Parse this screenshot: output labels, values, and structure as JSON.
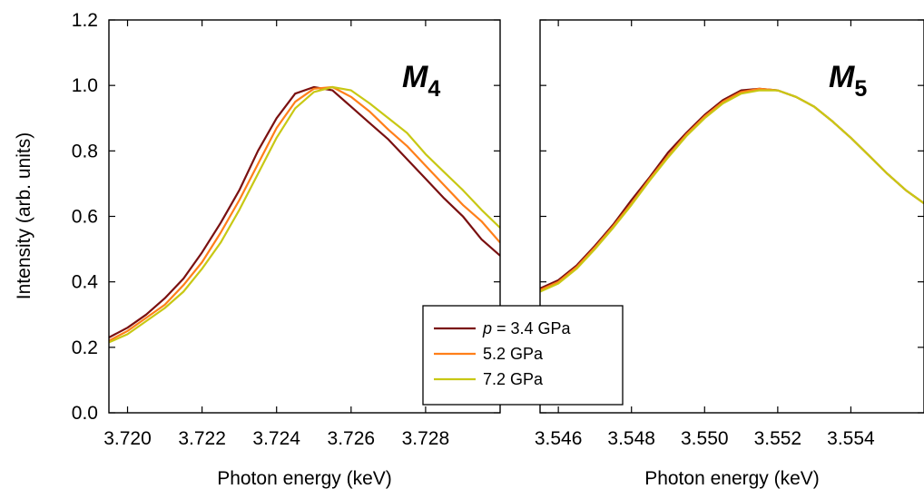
{
  "ylabel": "Intensity (arb. units)",
  "colors": {
    "p34": "#7a1010",
    "p52": "#ff7f1a",
    "p72": "#c8c814"
  },
  "legend": {
    "entries": [
      {
        "italic": "p",
        "text": " = 3.4 GPa"
      },
      {
        "italic": "",
        "text": "5.2 GPa"
      },
      {
        "italic": "",
        "text": "7.2 GPa"
      }
    ]
  },
  "chart_data": [
    {
      "type": "line",
      "panel_label": {
        "main": "M",
        "sub": "4"
      },
      "xlabel": "Photon energy (keV)",
      "ylabel": "Intensity (arb. units)",
      "xlim": [
        3.7195,
        3.73
      ],
      "ylim": [
        0.0,
        1.2
      ],
      "xticks": [
        3.72,
        3.722,
        3.724,
        3.726,
        3.728
      ],
      "xtick_labels": [
        "3.720",
        "3.722",
        "3.724",
        "3.726",
        "3.728"
      ],
      "yticks": [
        0.0,
        0.2,
        0.4,
        0.6,
        0.8,
        1.0,
        1.2
      ],
      "ytick_labels": [
        "0.0",
        "0.2",
        "0.4",
        "0.6",
        "0.8",
        "1.0",
        "1.2"
      ],
      "series": [
        {
          "name": "p = 3.4 GPa",
          "color": "#7a1010",
          "x": [
            3.7195,
            3.72,
            3.7205,
            3.721,
            3.7215,
            3.722,
            3.7225,
            3.723,
            3.7235,
            3.724,
            3.7245,
            3.725,
            3.7255,
            3.726,
            3.7265,
            3.727,
            3.7275,
            3.728,
            3.7285,
            3.729,
            3.7295,
            3.73
          ],
          "y": [
            0.23,
            0.26,
            0.3,
            0.35,
            0.41,
            0.49,
            0.58,
            0.68,
            0.8,
            0.9,
            0.975,
            0.995,
            0.985,
            0.935,
            0.885,
            0.835,
            0.775,
            0.715,
            0.655,
            0.6,
            0.53,
            0.48
          ]
        },
        {
          "name": "5.2 GPa",
          "color": "#ff7f1a",
          "x": [
            3.7195,
            3.72,
            3.7205,
            3.721,
            3.7215,
            3.722,
            3.7225,
            3.723,
            3.7235,
            3.724,
            3.7245,
            3.725,
            3.7255,
            3.726,
            3.7265,
            3.727,
            3.7275,
            3.728,
            3.7285,
            3.729,
            3.7295,
            3.73
          ],
          "y": [
            0.22,
            0.25,
            0.29,
            0.33,
            0.39,
            0.46,
            0.55,
            0.65,
            0.76,
            0.87,
            0.95,
            0.99,
            0.995,
            0.965,
            0.92,
            0.865,
            0.815,
            0.755,
            0.695,
            0.635,
            0.585,
            0.52
          ]
        },
        {
          "name": "7.2 GPa",
          "color": "#c8c814",
          "x": [
            3.7195,
            3.72,
            3.7205,
            3.721,
            3.7215,
            3.722,
            3.7225,
            3.723,
            3.7235,
            3.724,
            3.7245,
            3.725,
            3.7255,
            3.726,
            3.7265,
            3.727,
            3.7275,
            3.728,
            3.7285,
            3.729,
            3.7295,
            3.73
          ],
          "y": [
            0.215,
            0.24,
            0.28,
            0.32,
            0.37,
            0.44,
            0.52,
            0.62,
            0.73,
            0.84,
            0.93,
            0.98,
            0.995,
            0.985,
            0.945,
            0.9,
            0.855,
            0.79,
            0.735,
            0.68,
            0.62,
            0.565
          ]
        }
      ]
    },
    {
      "type": "line",
      "panel_label": {
        "main": "M",
        "sub": "5"
      },
      "xlabel": "Photon energy (keV)",
      "ylabel": "",
      "xlim": [
        3.5455,
        3.556
      ],
      "ylim": [
        0.0,
        1.2
      ],
      "xticks": [
        3.546,
        3.548,
        3.55,
        3.552,
        3.554
      ],
      "xtick_labels": [
        "3.546",
        "3.548",
        "3.550",
        "3.552",
        "3.554"
      ],
      "yticks": [
        0.0,
        0.2,
        0.4,
        0.6,
        0.8,
        1.0,
        1.2
      ],
      "ytick_labels": [],
      "series": [
        {
          "name": "p = 3.4 GPa",
          "color": "#7a1010",
          "x": [
            3.5455,
            3.546,
            3.5465,
            3.547,
            3.5475,
            3.548,
            3.5485,
            3.549,
            3.5495,
            3.55,
            3.5505,
            3.551,
            3.5515,
            3.552,
            3.5525,
            3.553,
            3.5535,
            3.554,
            3.5545,
            3.555,
            3.5555,
            3.556
          ],
          "y": [
            0.38,
            0.405,
            0.45,
            0.51,
            0.575,
            0.65,
            0.72,
            0.795,
            0.855,
            0.91,
            0.955,
            0.985,
            0.99,
            0.985,
            0.965,
            0.935,
            0.89,
            0.84,
            0.785,
            0.73,
            0.68,
            0.64
          ]
        },
        {
          "name": "5.2 GPa",
          "color": "#ff7f1a",
          "x": [
            3.5455,
            3.546,
            3.5465,
            3.547,
            3.5475,
            3.548,
            3.5485,
            3.549,
            3.5495,
            3.55,
            3.5505,
            3.551,
            3.5515,
            3.552,
            3.5525,
            3.553,
            3.5535,
            3.554,
            3.5545,
            3.555,
            3.5555,
            3.556
          ],
          "y": [
            0.375,
            0.4,
            0.445,
            0.505,
            0.57,
            0.64,
            0.715,
            0.785,
            0.85,
            0.905,
            0.95,
            0.98,
            0.99,
            0.985,
            0.965,
            0.935,
            0.89,
            0.84,
            0.785,
            0.73,
            0.68,
            0.64
          ]
        },
        {
          "name": "7.2 GPa",
          "color": "#c8c814",
          "x": [
            3.5455,
            3.546,
            3.5465,
            3.547,
            3.5475,
            3.548,
            3.5485,
            3.549,
            3.5495,
            3.55,
            3.5505,
            3.551,
            3.5515,
            3.552,
            3.5525,
            3.553,
            3.5535,
            3.554,
            3.5545,
            3.555,
            3.5555,
            3.556
          ],
          "y": [
            0.37,
            0.395,
            0.44,
            0.5,
            0.565,
            0.635,
            0.71,
            0.78,
            0.845,
            0.9,
            0.945,
            0.975,
            0.985,
            0.985,
            0.965,
            0.935,
            0.89,
            0.84,
            0.785,
            0.73,
            0.68,
            0.64
          ]
        }
      ]
    }
  ]
}
